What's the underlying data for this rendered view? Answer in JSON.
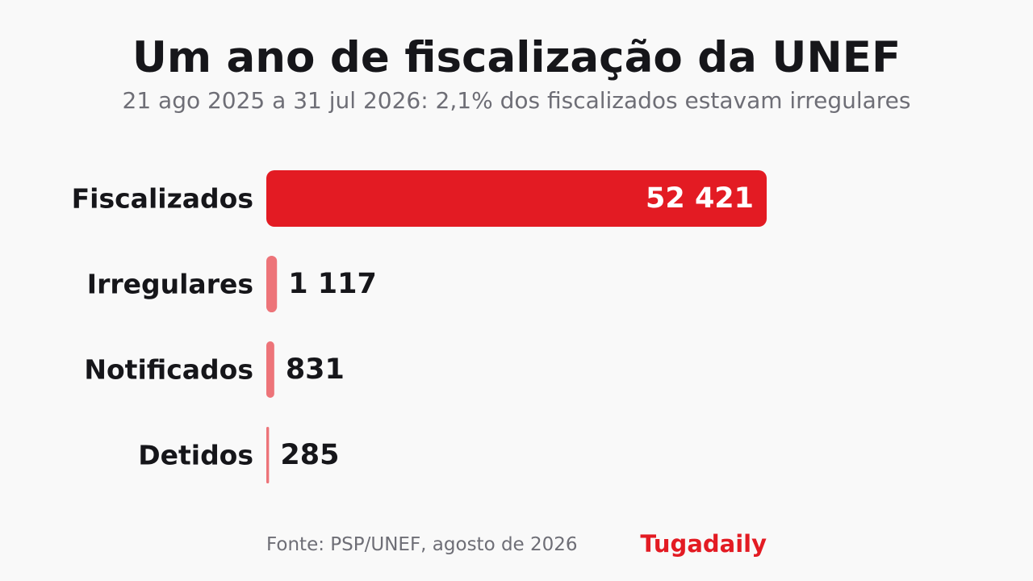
{
  "colors": {
    "background": "#f9f9f9",
    "primary_bar": "#e31b23",
    "secondary_bar": "#ed7479",
    "text_dark": "#16161a",
    "text_muted": "#6e6e76",
    "brand": "#e31b23"
  },
  "chart_data": {
    "type": "bar",
    "orientation": "horizontal",
    "title": "Um ano de fiscalização da UNEF",
    "subtitle": "21 ago 2025 a 31 jul 2026: 2,1% dos fiscalizados estavam irregulares",
    "categories": [
      "Fiscalizados",
      "Irregulares",
      "Notificados",
      "Detidos"
    ],
    "values": [
      52421,
      1117,
      831,
      285
    ],
    "value_labels": [
      "52 421",
      "1 117",
      "831",
      "285"
    ],
    "xlim": [
      0,
      52421
    ],
    "grid": false,
    "legend": "none"
  },
  "footer": {
    "source": "Fonte: PSP/UNEF, agosto de 2026",
    "brand": "Tugadaily"
  }
}
